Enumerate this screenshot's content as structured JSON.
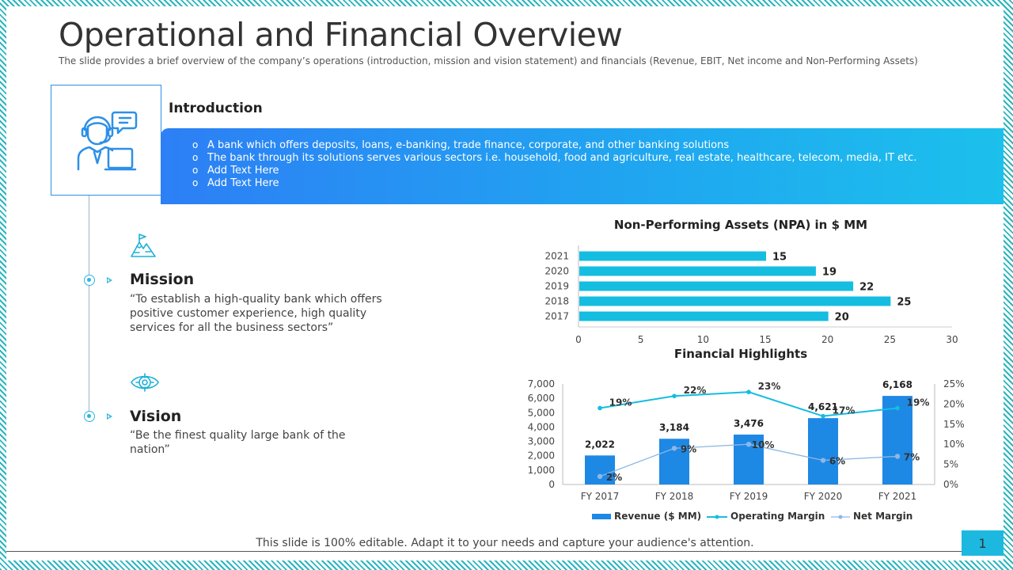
{
  "slide": {
    "title": "Operational and Financial Overview",
    "subtitle": "The slide provides a brief overview of the company’s operations (introduction, mission and vision statement) and financials (Revenue, EBIT, Net income and Non-Performing Assets)"
  },
  "introduction": {
    "title": "Introduction",
    "bullets": [
      "A bank which offers deposits, loans, e-banking, trade finance, corporate, and other banking solutions",
      "The bank through its solutions serves various sectors i.e. household, food and agriculture, real estate, healthcare, telecom, media, IT etc.",
      "Add Text Here",
      "Add Text Here"
    ],
    "icon": "customer-service-agent-icon"
  },
  "mission": {
    "title": "Mission",
    "text": "“To establish a high-quality bank which offers positive customer experience, high quality services for all the business sectors”",
    "icon": "mountain-flag-icon"
  },
  "vision": {
    "title": "Vision",
    "text": "“Be the finest quality large bank of the nation”",
    "icon": "eye-target-icon"
  },
  "footer": {
    "text": "This slide is 100% editable. Adapt it to your needs and capture your audience's attention.",
    "page_number": "1"
  },
  "colors": {
    "accent_blue": "#2d7ff5",
    "accent_cyan": "#1cc0ec",
    "bar_blue": "#1e88e5",
    "npa_bar": "#15bde0",
    "net_margin": "#8ab8e6"
  },
  "chart_data": [
    {
      "type": "bar",
      "orientation": "horizontal",
      "title": "Non-Performing Assets  (NPA) in $ MM",
      "categories": [
        "2021",
        "2020",
        "2019",
        "2018",
        "2017"
      ],
      "values": [
        15,
        19,
        22,
        25,
        20
      ],
      "xlim": [
        0,
        30
      ],
      "x_ticks": [
        "0",
        "5",
        "10",
        "15",
        "20",
        "25",
        "30"
      ],
      "grid": false,
      "legend": "none"
    },
    {
      "type": "bar",
      "title": "Financial Highlights",
      "categories": [
        "FY 2017",
        "FY 2018",
        "FY 2019",
        "FY 2020",
        "FY 2021"
      ],
      "series": [
        {
          "name": "Revenue ($ MM)",
          "type": "bar",
          "axis": "left",
          "values": [
            2022,
            3184,
            3476,
            4621,
            6168
          ],
          "labels": [
            "2,022",
            "3,184",
            "3,476",
            "4,621",
            "6,168"
          ]
        },
        {
          "name": "Operating Margin",
          "type": "line",
          "axis": "right",
          "values": [
            19,
            22,
            23,
            17,
            19
          ],
          "labels": [
            "19%",
            "22%",
            "23%",
            "17%",
            "19%"
          ]
        },
        {
          "name": "Net Margin",
          "type": "line",
          "axis": "right",
          "values": [
            2,
            9,
            10,
            6,
            7
          ],
          "labels": [
            "2%",
            "9%",
            "10%",
            "6%",
            "7%"
          ]
        }
      ],
      "ylim_left": [
        0,
        7000
      ],
      "y_ticks_left": [
        "0",
        "1,000",
        "2,000",
        "3,000",
        "4,000",
        "5,000",
        "6,000",
        "7,000"
      ],
      "ylim_right": [
        0,
        25
      ],
      "y_ticks_right": [
        "0%",
        "5%",
        "10%",
        "15%",
        "20%",
        "25%"
      ],
      "legend": "bottom"
    }
  ]
}
